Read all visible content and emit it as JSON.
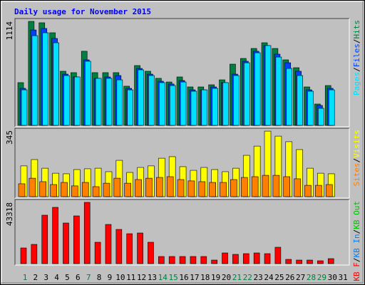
{
  "title": "Daily usage for November 2015",
  "legend_separator": "/",
  "chart_data": [
    {
      "type": "bar",
      "ylim": [
        0,
        1114
      ],
      "yticks": [
        1114
      ],
      "series": [
        {
          "name": "Pages",
          "color": "#00e0ff",
          "values": [
            381,
            961,
            992,
            885,
            534,
            519,
            687,
            504,
            504,
            488,
            381,
            595,
            534,
            458,
            427,
            465,
            366,
            381,
            397,
            458,
            534,
            671,
            778,
            855,
            732,
            610,
            534,
            366,
            183,
            381,
            0
          ]
        },
        {
          "name": "Files",
          "color": "#0040ff",
          "values": [
            397,
            1022,
            1038,
            931,
            549,
            519,
            702,
            504,
            519,
            534,
            397,
            610,
            549,
            473,
            443,
            481,
            381,
            381,
            412,
            458,
            549,
            687,
            794,
            855,
            763,
            671,
            580,
            381,
            214,
            397,
            0
          ]
        },
        {
          "name": "Hits",
          "color": "#008040",
          "values": [
            458,
            1114,
            1099,
            992,
            580,
            565,
            794,
            565,
            565,
            565,
            420,
            641,
            580,
            504,
            465,
            519,
            412,
            412,
            435,
            488,
            656,
            717,
            824,
            885,
            824,
            702,
            618,
            412,
            229,
            427,
            0
          ]
        }
      ]
    },
    {
      "type": "bar",
      "ylim": [
        0,
        345
      ],
      "yticks": [
        345
      ],
      "series": [
        {
          "name": "Sites",
          "color": "#ff8000",
          "values": [
            67,
            96,
            78,
            63,
            74,
            56,
            74,
            52,
            70,
            96,
            70,
            89,
            96,
            100,
            104,
            89,
            82,
            78,
            74,
            74,
            89,
            100,
            104,
            111,
            111,
            104,
            93,
            59,
            59,
            63,
            0
          ]
        },
        {
          "name": "Visits",
          "color": "#ffff00",
          "values": [
            160,
            193,
            148,
            122,
            119,
            141,
            145,
            148,
            130,
            189,
            126,
            152,
            160,
            200,
            208,
            156,
            137,
            152,
            141,
            130,
            148,
            215,
            263,
            341,
            315,
            286,
            245,
            148,
            122,
            119,
            0
          ]
        }
      ]
    },
    {
      "type": "bar",
      "ylim": [
        0,
        43318
      ],
      "yticks": [
        43318
      ],
      "categories": [
        "1",
        "2",
        "3",
        "4",
        "5",
        "6",
        "7",
        "8",
        "9",
        "10",
        "11",
        "12",
        "13",
        "14",
        "15",
        "16",
        "17",
        "18",
        "19",
        "20",
        "21",
        "22",
        "23",
        "24",
        "25",
        "26",
        "27",
        "28",
        "29",
        "30",
        "31"
      ],
      "category_colors": [
        "#008040",
        "#000000",
        "#000000",
        "#000000",
        "#000000",
        "#000000",
        "#008040",
        "#000000",
        "#000000",
        "#000000",
        "#000000",
        "#000000",
        "#000000",
        "#008040",
        "#008040",
        "#000000",
        "#000000",
        "#000000",
        "#000000",
        "#000000",
        "#008040",
        "#008040",
        "#000000",
        "#000000",
        "#000000",
        "#000000",
        "#000000",
        "#008040",
        "#008040",
        "#000000",
        "#000000"
      ],
      "series": [
        {
          "name": "KB F",
          "color": "#ff0000",
          "values": [
            11081,
            13600,
            34251,
            39792,
            28711,
            33748,
            43318,
            15111,
            27703,
            24177,
            21155,
            21659,
            15111,
            5037,
            5037,
            5037,
            5037,
            5037,
            2518,
            7555,
            6548,
            7052,
            7555,
            7052,
            11585,
            3022,
            2518,
            2518,
            2015,
            3526,
            0
          ]
        },
        {
          "name": "KB In",
          "color": "#0080ff",
          "values": [
            0,
            0,
            0,
            0,
            0,
            0,
            0,
            0,
            0,
            0,
            0,
            0,
            0,
            0,
            0,
            0,
            0,
            0,
            0,
            0,
            0,
            0,
            0,
            0,
            0,
            0,
            0,
            0,
            0,
            0,
            0
          ]
        },
        {
          "name": "KB Out",
          "color": "#00c000",
          "values": [
            0,
            0,
            0,
            0,
            0,
            0,
            0,
            0,
            0,
            0,
            0,
            0,
            0,
            0,
            0,
            0,
            0,
            0,
            0,
            0,
            0,
            0,
            0,
            0,
            0,
            0,
            0,
            0,
            0,
            0,
            0
          ]
        }
      ]
    }
  ]
}
